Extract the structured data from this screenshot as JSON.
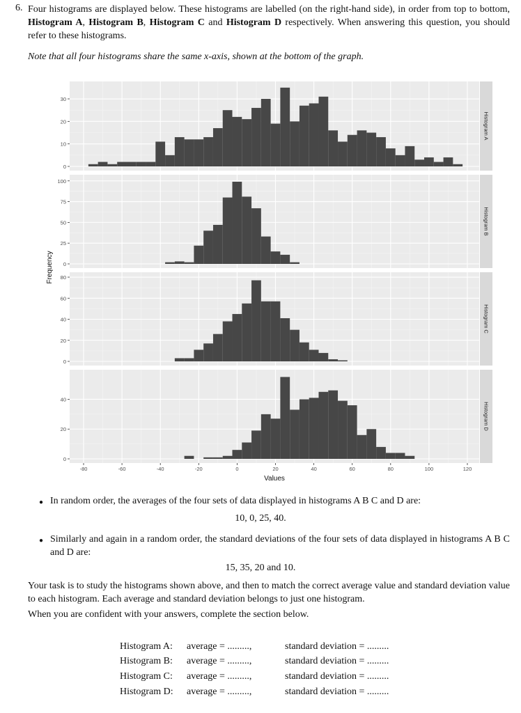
{
  "question": {
    "number": "6.",
    "intro_1": "Four histograms are displayed below. These histograms are labelled (on the right-hand side), in order from top to bottom, ",
    "hist_a": "Histogram A",
    "sep1": ", ",
    "hist_b": "Histogram B",
    "sep2": ", ",
    "hist_c": "Histogram C",
    "sep3": " and ",
    "hist_d": "Histogram D",
    "intro_2": " respectively. When answering this question, you should refer to these histograms.",
    "note": "Note that all four histograms share the same x-axis, shown at the bottom of the graph."
  },
  "chart_data": {
    "type": "bar",
    "facet": "vertical",
    "shared_x": true,
    "xlabel": "Values",
    "ylabel": "Frequency",
    "xlim": [
      -87,
      126
    ],
    "xticks": [
      "-80",
      "-60",
      "-40",
      "-20",
      "0",
      "20",
      "40",
      "60",
      "80",
      "100",
      "120"
    ],
    "bin_width": 5,
    "grid": true,
    "bar_color": "#474747",
    "panel_background": "#ebebeb",
    "strip_background": "#d9d9d9",
    "panels": [
      {
        "name": "Histogram A",
        "yticks": [
          "0",
          "10",
          "20",
          "30"
        ],
        "ylim": [
          0,
          36.5
        ],
        "bin_centers": [
          -75,
          -70,
          -65,
          -60,
          -55,
          -50,
          -45,
          -40,
          -35,
          -30,
          -25,
          -20,
          -15,
          -10,
          -5,
          0,
          5,
          10,
          15,
          20,
          25,
          30,
          35,
          40,
          45,
          50,
          55,
          60,
          65,
          70,
          75,
          80,
          85,
          90,
          95,
          100,
          105,
          110,
          115
        ],
        "values": [
          1,
          2,
          1,
          2,
          2,
          2,
          2,
          11,
          5,
          13,
          12,
          12,
          13,
          17,
          25,
          22,
          21,
          26,
          30,
          19,
          35,
          20,
          27,
          28,
          31,
          16,
          11,
          14,
          16,
          15,
          13,
          8,
          5,
          9,
          3,
          4,
          2,
          4,
          1
        ]
      },
      {
        "name": "Histogram B",
        "yticks": [
          "0",
          "25",
          "50",
          "75",
          "100"
        ],
        "ylim": [
          0,
          104
        ],
        "bin_centers": [
          -35,
          -30,
          -25,
          -20,
          -15,
          -10,
          -5,
          0,
          5,
          10,
          15,
          20,
          25,
          30
        ],
        "values": [
          2,
          3,
          2,
          22,
          40,
          47,
          80,
          99,
          81,
          67,
          33,
          15,
          11,
          2
        ]
      },
      {
        "name": "Histogram C",
        "yticks": [
          "0",
          "20",
          "40",
          "60",
          "80"
        ],
        "ylim": [
          0,
          82
        ],
        "bin_centers": [
          -30,
          -25,
          -20,
          -15,
          -10,
          -5,
          0,
          5,
          10,
          15,
          20,
          25,
          30,
          35,
          40,
          45,
          50,
          55
        ],
        "values": [
          3,
          3,
          11,
          17,
          26,
          38,
          45,
          55,
          77,
          57,
          57,
          41,
          30,
          18,
          11,
          8,
          2,
          1
        ]
      },
      {
        "name": "Histogram D",
        "yticks": [
          "0",
          "20",
          "40"
        ],
        "ylim": [
          0,
          58
        ],
        "bin_centers": [
          -25,
          -20,
          -15,
          -10,
          -5,
          0,
          5,
          10,
          15,
          20,
          25,
          30,
          35,
          40,
          45,
          50,
          55,
          60,
          65,
          70,
          75,
          80,
          85,
          90
        ],
        "values": [
          2,
          0,
          1,
          1,
          2,
          6,
          11,
          19,
          30,
          27,
          55,
          33,
          40,
          41,
          45,
          46,
          39,
          36,
          16,
          20,
          8,
          4,
          4,
          2
        ]
      }
    ]
  },
  "bullets": [
    {
      "text": "In random order, the averages of the four sets of data displayed in histograms A B C and D are:",
      "values": "10, 0, 25, 40."
    },
    {
      "text": "Similarly and again in a random order, the standard deviations of the four sets of data displayed in histograms A B C and D are:",
      "values": "15, 35, 20 and 10."
    }
  ],
  "task": "Your task is to study the histograms shown above, and then to match the correct average value and standard deviation value to each histogram. Each average and standard deviation belongs to just one histogram.",
  "instruction": "When you are confident with your answers, complete the section below.",
  "answers": [
    {
      "label": "Histogram A:",
      "average": "average = .........,",
      "sd": "standard deviation = ........."
    },
    {
      "label": "Histogram B:",
      "average": "average = .........,",
      "sd": "standard deviation = ........."
    },
    {
      "label": "Histogram C:",
      "average": "average = .........,",
      "sd": "standard deviation = ........."
    },
    {
      "label": "Histogram D:",
      "average": "average = .........,",
      "sd": "standard deviation = ........."
    }
  ]
}
